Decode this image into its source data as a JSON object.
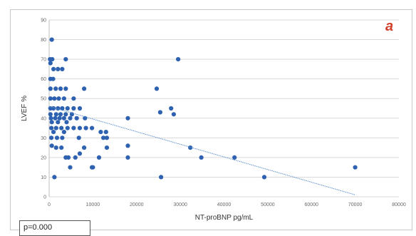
{
  "panel_letter": "a",
  "p_value_text": "p=0.000",
  "colors": {
    "points": "#2e62b0",
    "trendline": "#5b8fcf",
    "grid": "#d9d9d9",
    "panel_letter": "#d2412b"
  },
  "chart_data": {
    "type": "scatter",
    "title": "",
    "xlabel": "NT-proBNP pg/mL",
    "ylabel": "LVEF %",
    "xlim": [
      0,
      80000
    ],
    "ylim": [
      0,
      90
    ],
    "xticks": [
      "0",
      "10000",
      "20000",
      "30000",
      "40000",
      "50000",
      "60000",
      "70000",
      "80000"
    ],
    "yticks": [
      "0",
      "10",
      "20",
      "30",
      "40",
      "50",
      "60",
      "70",
      "80",
      "90"
    ],
    "grid": "horizontal",
    "trendline": {
      "type": "linear",
      "x": [
        0,
        70000
      ],
      "y": [
        46,
        1
      ]
    },
    "points": [
      [
        600,
        80
      ],
      [
        200,
        70
      ],
      [
        700,
        70
      ],
      [
        300,
        68
      ],
      [
        1000,
        65
      ],
      [
        2000,
        65
      ],
      [
        3000,
        65
      ],
      [
        3800,
        70
      ],
      [
        300,
        60
      ],
      [
        900,
        60
      ],
      [
        300,
        55
      ],
      [
        1500,
        55
      ],
      [
        2600,
        55
      ],
      [
        3800,
        55
      ],
      [
        8000,
        55
      ],
      [
        300,
        50
      ],
      [
        1200,
        50
      ],
      [
        2200,
        50
      ],
      [
        3400,
        50
      ],
      [
        5600,
        50
      ],
      [
        300,
        45
      ],
      [
        1000,
        45
      ],
      [
        2000,
        45
      ],
      [
        3000,
        45
      ],
      [
        4200,
        45
      ],
      [
        5600,
        45
      ],
      [
        7000,
        45
      ],
      [
        300,
        42
      ],
      [
        1600,
        42
      ],
      [
        2600,
        42
      ],
      [
        3800,
        42
      ],
      [
        5200,
        42
      ],
      [
        400,
        40
      ],
      [
        1400,
        40
      ],
      [
        2400,
        40
      ],
      [
        3400,
        40
      ],
      [
        4800,
        40
      ],
      [
        6300,
        40
      ],
      [
        8200,
        40
      ],
      [
        600,
        38
      ],
      [
        2000,
        38
      ],
      [
        4000,
        38
      ],
      [
        500,
        35
      ],
      [
        1600,
        35
      ],
      [
        2800,
        35
      ],
      [
        4200,
        35
      ],
      [
        5600,
        35
      ],
      [
        7000,
        35
      ],
      [
        8400,
        35
      ],
      [
        9800,
        35
      ],
      [
        1000,
        33
      ],
      [
        3400,
        33
      ],
      [
        11800,
        33
      ],
      [
        13000,
        33
      ],
      [
        500,
        30
      ],
      [
        1800,
        30
      ],
      [
        3000,
        30
      ],
      [
        6800,
        30
      ],
      [
        12400,
        30
      ],
      [
        13200,
        30
      ],
      [
        600,
        26
      ],
      [
        1600,
        25
      ],
      [
        2800,
        25
      ],
      [
        8000,
        25
      ],
      [
        13200,
        25
      ],
      [
        3800,
        20
      ],
      [
        4400,
        20
      ],
      [
        6000,
        20
      ],
      [
        7000,
        22
      ],
      [
        11400,
        20
      ],
      [
        4800,
        15
      ],
      [
        9800,
        15
      ],
      [
        10000,
        15
      ],
      [
        1200,
        10
      ],
      [
        18000,
        40
      ],
      [
        18000,
        26
      ],
      [
        18000,
        20
      ],
      [
        24600,
        55
      ],
      [
        25400,
        43
      ],
      [
        27900,
        45
      ],
      [
        28500,
        42
      ],
      [
        29500,
        70
      ],
      [
        25600,
        10
      ],
      [
        32300,
        25
      ],
      [
        34800,
        20
      ],
      [
        42400,
        20
      ],
      [
        49200,
        10
      ],
      [
        70000,
        15
      ]
    ]
  }
}
